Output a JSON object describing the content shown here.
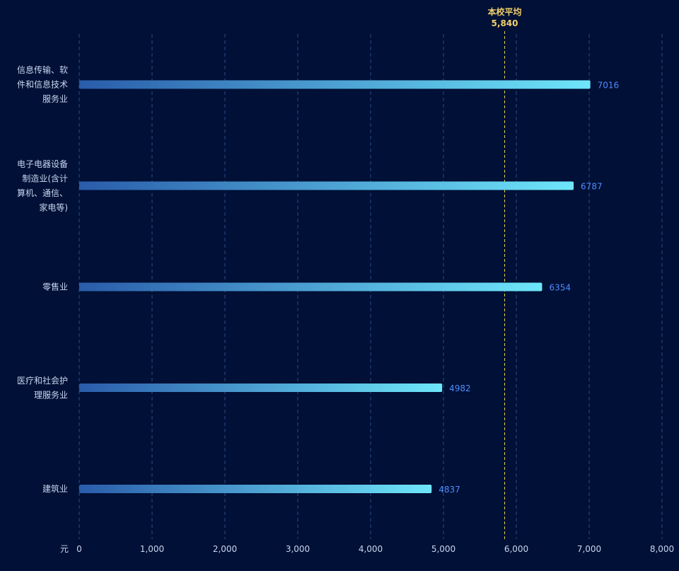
{
  "chart_data": {
    "type": "bar",
    "orientation": "horizontal",
    "categories": [
      [
        "信息传输、软",
        "件和信息技术",
        "服务业"
      ],
      [
        "电子电器设备",
        "制造业(含计",
        "算机、通信、",
        "家电等)"
      ],
      [
        "零售业"
      ],
      [
        "医疗和社会护",
        "理服务业"
      ],
      [
        "建筑业"
      ]
    ],
    "values": [
      7016,
      6787,
      6354,
      4982,
      4837
    ],
    "value_labels": [
      "7016",
      "6787",
      "6354",
      "4982",
      "4837"
    ],
    "x_unit": "元",
    "xlim": [
      0,
      8000
    ],
    "x_ticks": [
      0,
      1000,
      2000,
      3000,
      4000,
      5000,
      6000,
      7000,
      8000
    ],
    "x_tick_labels": [
      "0",
      "1,000",
      "2,000",
      "3,000",
      "4,000",
      "5,000",
      "6,000",
      "7,000",
      "8,000"
    ],
    "grid": true,
    "mark_line": {
      "name": "本校平均",
      "value": 5840,
      "label": "5,840"
    },
    "colors": {
      "background": "#001036",
      "bar_start": "#2a5caa",
      "bar_end": "#6ee6fa",
      "value_text": "#4f8cff",
      "grid": "#2b4a8a",
      "avg_line": "#e8d24a",
      "avg_text": "#f2d06b",
      "axis_text": "#c9d6f0"
    }
  }
}
